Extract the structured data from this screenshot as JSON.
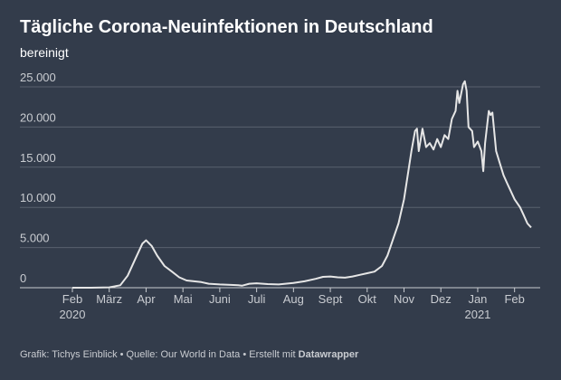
{
  "chart_data": {
    "type": "line",
    "title": "Tägliche Corona-Neuinfektionen in Deutschland",
    "subtitle": "bereinigt",
    "source": "Grafik: Tichys Einblick • Quelle: Our World in Data • Erstellt mit",
    "credit": "Datawrapper",
    "x": [
      0,
      0.5,
      1.0,
      1.3,
      1.5,
      1.7,
      1.9,
      2.0,
      2.15,
      2.3,
      2.5,
      2.7,
      2.9,
      3.1,
      3.3,
      3.5,
      3.7,
      4.0,
      4.3,
      4.5,
      4.6,
      4.8,
      5.0,
      5.3,
      5.6,
      6.0,
      6.3,
      6.6,
      6.8,
      7.0,
      7.2,
      7.4,
      7.6,
      7.8,
      8.0,
      8.2,
      8.4,
      8.55,
      8.7,
      8.85,
      9.0,
      9.1,
      9.2,
      9.3,
      9.35,
      9.4,
      9.5,
      9.6,
      9.7,
      9.8,
      9.9,
      10.0,
      10.1,
      10.2,
      10.3,
      10.4,
      10.45,
      10.5,
      10.6,
      10.65,
      10.7,
      10.75,
      10.85,
      10.9,
      11.0,
      11.1,
      11.15,
      11.2,
      11.3,
      11.35,
      11.4,
      11.5,
      11.6,
      11.7,
      11.8,
      11.9,
      12.0,
      12.15,
      12.25,
      12.35,
      12.45
    ],
    "series": [
      {
        "name": "Neuinfektionen",
        "color": "#e6e6e6",
        "values": [
          0,
          0,
          50,
          300,
          1500,
          3500,
          5500,
          5900,
          5200,
          4000,
          2700,
          2000,
          1300,
          900,
          800,
          700,
          500,
          400,
          350,
          300,
          250,
          500,
          550,
          450,
          400,
          600,
          800,
          1100,
          1350,
          1400,
          1300,
          1250,
          1400,
          1600,
          1800,
          2000,
          2700,
          4000,
          6000,
          8000,
          11000,
          14000,
          17000,
          19500,
          19800,
          17000,
          19800,
          17500,
          18000,
          17200,
          18500,
          17500,
          19000,
          18500,
          21000,
          22000,
          24500,
          23000,
          25300,
          25700,
          24500,
          20000,
          19500,
          17500,
          18200,
          17000,
          14500,
          18000,
          22000,
          21500,
          21800,
          17000,
          15500,
          14000,
          13000,
          12000,
          11000,
          10000,
          9000,
          8000,
          7500
        ]
      }
    ],
    "xlim": [
      0,
      12.45
    ],
    "xticks": [
      {
        "value": 0,
        "label": "Feb\n2020"
      },
      {
        "value": 1,
        "label": "März"
      },
      {
        "value": 2,
        "label": "Apr"
      },
      {
        "value": 3,
        "label": "Mai"
      },
      {
        "value": 4,
        "label": "Juni"
      },
      {
        "value": 5,
        "label": "Juli"
      },
      {
        "value": 6,
        "label": "Aug"
      },
      {
        "value": 7,
        "label": "Sept"
      },
      {
        "value": 8,
        "label": "Okt"
      },
      {
        "value": 9,
        "label": "Nov"
      },
      {
        "value": 10,
        "label": "Dez"
      },
      {
        "value": 11,
        "label": "Jan\n2021"
      },
      {
        "value": 12,
        "label": "Feb"
      }
    ],
    "ylim": [
      0,
      25000
    ],
    "yticks": [
      0,
      {
        "value": 5000,
        "label": "5.000"
      },
      {
        "value": 10000,
        "label": "10.000"
      },
      {
        "value": 15000,
        "label": "15.000"
      },
      {
        "value": 20000,
        "label": "20.000"
      },
      {
        "value": 25000,
        "label": "25.000"
      }
    ],
    "grid": true
  }
}
